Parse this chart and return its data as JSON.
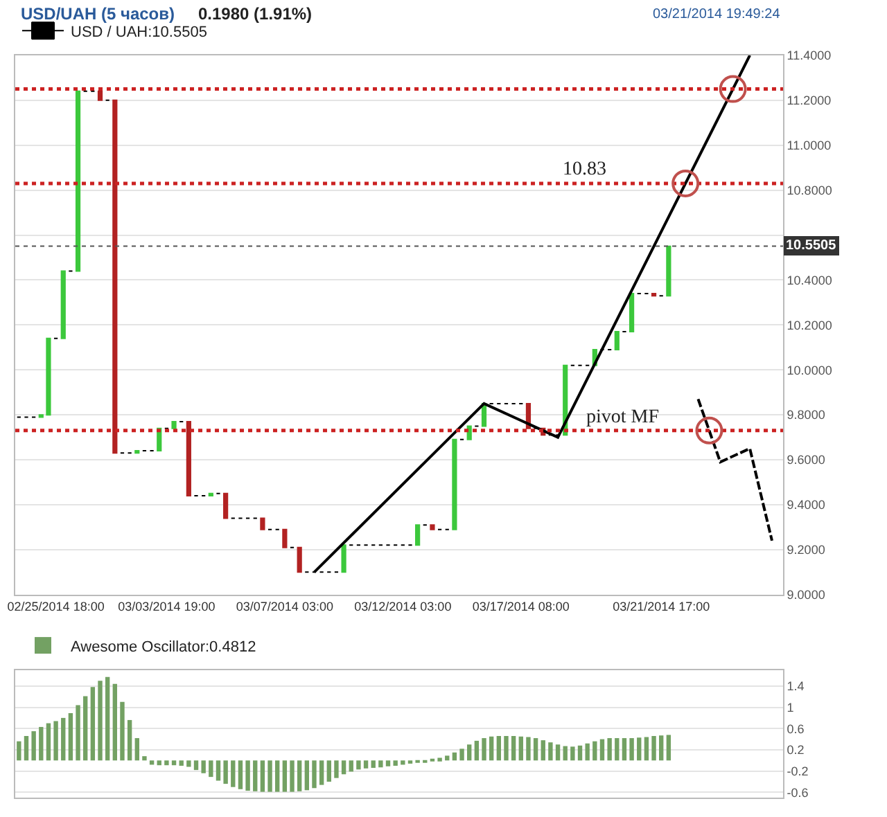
{
  "chart_data": [
    {
      "type": "candlestick",
      "title": "USD/UAH (5 часов)",
      "subtitle": "0.1980 (1.91%)",
      "annotations": [
        "03/21/2014 19:49:24"
      ],
      "categories": [
        null,
        null,
        null,
        null,
        null,
        "02/25/2014 18:00",
        null,
        null,
        null,
        null,
        null,
        null,
        null,
        null,
        null,
        null,
        null,
        null,
        null,
        null,
        "03/03/2014 19:00",
        null,
        null,
        null,
        null,
        null,
        null,
        null,
        null,
        null,
        null,
        null,
        null,
        null,
        null,
        null,
        "03/07/2014 03:00",
        null,
        null,
        null,
        null,
        null,
        null,
        null,
        null,
        null,
        null,
        null,
        null,
        null,
        null,
        null,
        "03/12/2014 03:00",
        null,
        null,
        null,
        null,
        null,
        null,
        null,
        null,
        null,
        null,
        null,
        null,
        null,
        null,
        null,
        "03/17/2014 08:00",
        null,
        null,
        null,
        null,
        null,
        null,
        null,
        null,
        null,
        null,
        null,
        null,
        null,
        null,
        null,
        null,
        null,
        null,
        "03/21/2014 17:00",
        null,
        null,
        null,
        null,
        null,
        null,
        null,
        null,
        null,
        null,
        null,
        null,
        null,
        null,
        null,
        null
      ],
      "series": [
        {
          "type": "candlestick",
          "name": "USD / UAH:10.5505",
          "colors": [
            "#000000",
            "#000000",
            "#000000",
            "#3cc83c",
            "#3cc83c",
            "#000000",
            "#3cc83c",
            "#000000",
            "#3cc83c",
            "#000000",
            "#000000",
            "#b22222",
            "#000000",
            "#b22222",
            "#000000",
            "#000000",
            "#3cc83c",
            "#000000",
            "#000000",
            "#3cc83c",
            "#000000",
            "#3cc83c",
            "#000000",
            "#b22222",
            "#000000",
            "#000000",
            "#3cc83c",
            "#000000",
            "#b22222",
            "#000000",
            "#000000",
            "#000000",
            "#000000",
            "#b22222",
            "#000000",
            "#000000",
            "#b22222",
            "#000000",
            "#b22222",
            "#000000",
            "#000000",
            "#000000",
            "#000000",
            "#000000",
            "#3cc83c",
            "#000000",
            "#000000",
            "#000000",
            "#000000",
            "#000000",
            "#000000",
            "#000000",
            "#000000",
            "#000000",
            "#3cc83c",
            "#000000",
            "#b22222",
            "#000000",
            "#000000",
            "#3cc83c",
            "#000000",
            "#3cc83c",
            "#000000",
            "#3cc83c",
            "#000000",
            "#000000",
            "#000000",
            "#000000",
            "#000000",
            "#b22222",
            "#000000",
            "#b22222",
            "#000000",
            "#000000",
            "#3cc83c",
            "#000000",
            "#000000",
            "#000000",
            "#3cc83c",
            "#000000",
            "#000000",
            "#3cc83c",
            "#000000",
            "#3cc83c",
            "#000000",
            "#000000",
            "#b22222",
            "#000000",
            "#3cc83c",
            null,
            null,
            null,
            null,
            null,
            null,
            null,
            null,
            null,
            null,
            null,
            null,
            null,
            null,
            null
          ],
          "ohlc": [
            [
              9.79,
              9.79,
              9.79,
              9.79
            ],
            [
              9.79,
              9.79,
              9.79,
              9.79
            ],
            [
              9.79,
              9.79,
              9.79,
              9.79
            ],
            [
              9.79,
              9.8,
              9.79,
              9.8
            ],
            [
              9.8,
              10.14,
              9.8,
              10.14
            ],
            [
              10.14,
              10.14,
              10.14,
              10.14
            ],
            [
              10.14,
              10.44,
              10.14,
              10.44
            ],
            [
              10.44,
              10.44,
              10.44,
              10.44
            ],
            [
              10.44,
              11.24,
              10.44,
              11.24
            ],
            [
              11.24,
              11.24,
              11.24,
              11.24
            ],
            [
              11.24,
              11.24,
              11.24,
              11.24
            ],
            [
              11.24,
              11.24,
              11.2,
              11.2
            ],
            [
              11.2,
              11.2,
              11.2,
              11.2
            ],
            [
              11.2,
              11.2,
              9.63,
              9.63
            ],
            [
              9.63,
              9.63,
              9.63,
              9.63
            ],
            [
              9.63,
              9.63,
              9.63,
              9.63
            ],
            [
              9.63,
              9.64,
              9.63,
              9.64
            ],
            [
              9.64,
              9.64,
              9.64,
              9.64
            ],
            [
              9.64,
              9.64,
              9.64,
              9.64
            ],
            [
              9.64,
              9.74,
              9.64,
              9.74
            ],
            [
              9.74,
              9.74,
              9.74,
              9.74
            ],
            [
              9.74,
              9.77,
              9.74,
              9.77
            ],
            [
              9.77,
              9.77,
              9.77,
              9.77
            ],
            [
              9.77,
              9.77,
              9.44,
              9.44
            ],
            [
              9.44,
              9.44,
              9.44,
              9.44
            ],
            [
              9.44,
              9.44,
              9.44,
              9.44
            ],
            [
              9.44,
              9.45,
              9.44,
              9.45
            ],
            [
              9.45,
              9.45,
              9.45,
              9.45
            ],
            [
              9.45,
              9.45,
              9.34,
              9.34
            ],
            [
              9.34,
              9.34,
              9.34,
              9.34
            ],
            [
              9.34,
              9.34,
              9.34,
              9.34
            ],
            [
              9.34,
              9.34,
              9.34,
              9.34
            ],
            [
              9.34,
              9.34,
              9.34,
              9.34
            ],
            [
              9.34,
              9.34,
              9.29,
              9.29
            ],
            [
              9.29,
              9.29,
              9.29,
              9.29
            ],
            [
              9.29,
              9.29,
              9.29,
              9.29
            ],
            [
              9.29,
              9.29,
              9.21,
              9.21
            ],
            [
              9.21,
              9.21,
              9.21,
              9.21
            ],
            [
              9.21,
              9.21,
              9.1,
              9.1
            ],
            [
              9.1,
              9.1,
              9.1,
              9.1
            ],
            [
              9.1,
              9.1,
              9.1,
              9.1
            ],
            [
              9.1,
              9.1,
              9.1,
              9.1
            ],
            [
              9.1,
              9.1,
              9.1,
              9.1
            ],
            [
              9.1,
              9.1,
              9.1,
              9.1
            ],
            [
              9.1,
              9.22,
              9.1,
              9.22
            ],
            [
              9.22,
              9.22,
              9.22,
              9.22
            ],
            [
              9.22,
              9.22,
              9.22,
              9.22
            ],
            [
              9.22,
              9.22,
              9.22,
              9.22
            ],
            [
              9.22,
              9.22,
              9.22,
              9.22
            ],
            [
              9.22,
              9.22,
              9.22,
              9.22
            ],
            [
              9.22,
              9.22,
              9.22,
              9.22
            ],
            [
              9.22,
              9.22,
              9.22,
              9.22
            ],
            [
              9.22,
              9.22,
              9.22,
              9.22
            ],
            [
              9.22,
              9.22,
              9.22,
              9.22
            ],
            [
              9.22,
              9.31,
              9.22,
              9.31
            ],
            [
              9.31,
              9.31,
              9.31,
              9.31
            ],
            [
              9.31,
              9.31,
              9.29,
              9.29
            ],
            [
              9.29,
              9.29,
              9.29,
              9.29
            ],
            [
              9.29,
              9.29,
              9.29,
              9.29
            ],
            [
              9.29,
              9.69,
              9.29,
              9.69
            ],
            [
              9.69,
              9.69,
              9.69,
              9.69
            ],
            [
              9.69,
              9.75,
              9.69,
              9.75
            ],
            [
              9.75,
              9.75,
              9.75,
              9.75
            ],
            [
              9.75,
              9.85,
              9.75,
              9.85
            ],
            [
              9.85,
              9.85,
              9.85,
              9.85
            ],
            [
              9.85,
              9.85,
              9.85,
              9.85
            ],
            [
              9.85,
              9.85,
              9.85,
              9.85
            ],
            [
              9.85,
              9.85,
              9.85,
              9.85
            ],
            [
              9.85,
              9.85,
              9.85,
              9.85
            ],
            [
              9.85,
              9.85,
              9.74,
              9.74
            ],
            [
              9.74,
              9.74,
              9.74,
              9.74
            ],
            [
              9.74,
              9.74,
              9.71,
              9.71
            ],
            [
              9.71,
              9.71,
              9.71,
              9.71
            ],
            [
              9.71,
              9.71,
              9.71,
              9.71
            ],
            [
              9.71,
              10.02,
              9.71,
              10.02
            ],
            [
              10.02,
              10.02,
              10.02,
              10.02
            ],
            [
              10.02,
              10.02,
              10.02,
              10.02
            ],
            [
              10.02,
              10.02,
              10.02,
              10.02
            ],
            [
              10.02,
              10.09,
              10.02,
              10.09
            ],
            [
              10.09,
              10.09,
              10.09,
              10.09
            ],
            [
              10.09,
              10.09,
              10.09,
              10.09
            ],
            [
              10.09,
              10.17,
              10.09,
              10.17
            ],
            [
              10.17,
              10.17,
              10.17,
              10.17
            ],
            [
              10.17,
              10.34,
              10.17,
              10.34
            ],
            [
              10.34,
              10.34,
              10.34,
              10.34
            ],
            [
              10.34,
              10.34,
              10.34,
              10.34
            ],
            [
              10.34,
              10.34,
              10.33,
              10.33
            ],
            [
              10.33,
              10.33,
              10.33,
              10.33
            ],
            [
              10.33,
              10.55,
              10.33,
              10.55
            ],
            null,
            null,
            null,
            null,
            null,
            null,
            null,
            null,
            null,
            null,
            null,
            null,
            null,
            null,
            null
          ]
        },
        {
          "type": "line",
          "color": "#000000",
          "line_style": "solid",
          "values": [
            null,
            null,
            null,
            null,
            null,
            null,
            null,
            null,
            null,
            null,
            null,
            null,
            null,
            null,
            null,
            null,
            null,
            null,
            null,
            null,
            null,
            null,
            null,
            null,
            null,
            null,
            null,
            null,
            null,
            null,
            null,
            null,
            null,
            null,
            null,
            null,
            null,
            null,
            null,
            null,
            9.1,
            null,
            null,
            null,
            null,
            null,
            null,
            null,
            null,
            null,
            null,
            null,
            null,
            null,
            null,
            null,
            null,
            null,
            null,
            null,
            null,
            null,
            null,
            9.85,
            null,
            null,
            null,
            null,
            null,
            null,
            null,
            null,
            null,
            9.7,
            null,
            null,
            null,
            null,
            null,
            null,
            null,
            null,
            null,
            null,
            null,
            null,
            null,
            null,
            null,
            null,
            null,
            null,
            null,
            null,
            null,
            null,
            null,
            null,
            null,
            11.4,
            null,
            null,
            null,
            null
          ]
        },
        {
          "type": "line",
          "color": "#000000",
          "line_style": "dashed",
          "values": [
            null,
            null,
            null,
            null,
            null,
            null,
            null,
            null,
            null,
            null,
            null,
            null,
            null,
            null,
            null,
            null,
            null,
            null,
            null,
            null,
            null,
            null,
            null,
            null,
            null,
            null,
            null,
            null,
            null,
            null,
            null,
            null,
            null,
            null,
            null,
            null,
            null,
            null,
            null,
            null,
            null,
            null,
            null,
            null,
            null,
            null,
            null,
            null,
            null,
            null,
            null,
            null,
            null,
            null,
            null,
            null,
            null,
            null,
            null,
            null,
            null,
            null,
            null,
            null,
            null,
            null,
            null,
            null,
            null,
            null,
            null,
            null,
            null,
            null,
            null,
            null,
            null,
            null,
            null,
            null,
            null,
            null,
            null,
            null,
            null,
            null,
            null,
            null,
            null,
            null,
            null,
            null,
            9.87,
            null,
            null,
            9.59,
            null,
            null,
            null,
            9.65,
            null,
            null,
            9.24,
            null
          ]
        }
      ],
      "ref_lines": [
        {
          "axis": "y",
          "value": 11.25,
          "color": "#cc2222",
          "line_style": "dotted"
        },
        {
          "axis": "y",
          "value": 10.83,
          "label": "10.83",
          "color": "#cc2222",
          "line_style": "dotted"
        },
        {
          "axis": "y",
          "value": 9.73,
          "label": "pivot MF",
          "color": "#cc2222",
          "line_style": "dotted"
        },
        {
          "axis": "y",
          "value": 10.5505,
          "label": "10.5505",
          "color": "#555555",
          "line_style": "dotted"
        }
      ],
      "ylim": [
        9.0,
        11.4
      ],
      "yticks": [
        {
          "value": 9.0,
          "label": "9.0000"
        },
        {
          "value": 9.2,
          "label": "9.2000"
        },
        {
          "value": 9.4,
          "label": "9.4000"
        },
        {
          "value": 9.6,
          "label": "9.6000"
        },
        {
          "value": 9.8,
          "label": "9.8000"
        },
        {
          "value": 10.0,
          "label": "10.0000"
        },
        {
          "value": 10.2,
          "label": "10.2000"
        },
        {
          "value": 10.4,
          "label": "10.4000"
        },
        {
          "value": 10.6,
          "label": null
        },
        {
          "value": 10.8,
          "label": "10.8000"
        },
        {
          "value": 11.0,
          "label": "11.0000"
        },
        {
          "value": 11.2,
          "label": "11.2000"
        },
        {
          "value": 11.4,
          "label": "11.4000"
        }
      ],
      "grid": "y",
      "legend": "top left"
    },
    {
      "type": "bar",
      "categories": [
        null,
        null,
        null,
        null,
        null,
        null,
        null,
        null,
        null,
        null,
        null,
        null,
        null,
        null,
        null,
        null,
        null,
        null,
        null,
        null,
        null,
        null,
        null,
        null,
        null,
        null,
        null,
        null,
        null,
        null,
        null,
        null,
        null,
        null,
        null,
        null,
        null,
        null,
        null,
        null,
        null,
        null,
        null,
        null,
        null,
        null,
        null,
        null,
        null,
        null,
        null,
        null,
        null,
        null,
        null,
        null,
        null,
        null,
        null,
        null,
        null,
        null,
        null,
        null,
        null,
        null,
        null,
        null,
        null,
        null,
        null,
        null,
        null,
        null,
        null,
        null,
        null,
        null,
        null,
        null,
        null,
        null,
        null,
        null,
        null,
        null,
        null,
        null,
        null,
        null,
        null,
        null,
        null,
        null,
        null,
        null,
        null,
        null,
        null,
        null,
        null,
        null,
        null,
        null
      ],
      "series": [
        {
          "name": "Awesome Oscillator:0.4812",
          "color": "#73a163",
          "values": [
            0.36,
            0.46,
            0.55,
            0.63,
            0.7,
            0.74,
            0.8,
            0.89,
            1.04,
            1.21,
            1.38,
            1.5,
            1.57,
            1.44,
            1.1,
            0.76,
            0.42,
            0.08,
            -0.08,
            -0.09,
            -0.09,
            -0.09,
            -0.1,
            -0.12,
            -0.18,
            -0.24,
            -0.31,
            -0.38,
            -0.44,
            -0.5,
            -0.54,
            -0.57,
            -0.58,
            -0.59,
            -0.59,
            -0.59,
            -0.59,
            -0.59,
            -0.58,
            -0.56,
            -0.52,
            -0.46,
            -0.4,
            -0.33,
            -0.26,
            -0.21,
            -0.17,
            -0.15,
            -0.14,
            -0.13,
            -0.11,
            -0.1,
            -0.08,
            -0.06,
            -0.04,
            -0.02,
            0.02,
            0.05,
            0.09,
            0.15,
            0.22,
            0.3,
            0.37,
            0.42,
            0.45,
            0.46,
            0.46,
            0.46,
            0.45,
            0.44,
            0.42,
            0.38,
            0.34,
            0.3,
            0.27,
            0.26,
            0.28,
            0.32,
            0.36,
            0.4,
            0.42,
            0.42,
            0.42,
            0.42,
            0.43,
            0.44,
            0.46,
            0.47,
            0.48,
            null,
            null,
            null,
            null,
            null,
            null,
            null,
            null,
            null,
            null,
            null,
            null,
            null,
            null,
            null
          ]
        }
      ],
      "ylim": [
        -0.7,
        1.7
      ],
      "yticks": [
        -0.6,
        -0.2,
        0.2,
        0.6,
        1,
        1.4
      ],
      "grid": "y",
      "legend": "top left"
    }
  ]
}
